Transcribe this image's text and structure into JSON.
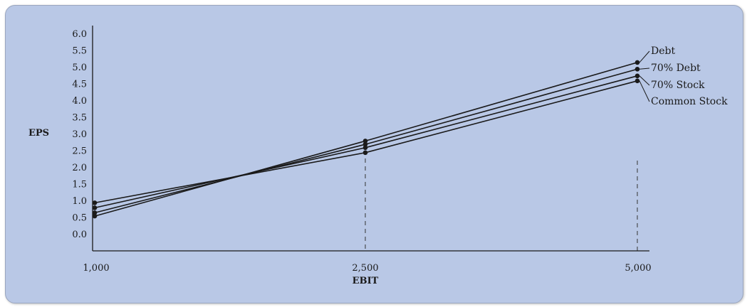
{
  "chart_data": {
    "type": "line",
    "xlabel": "EBIT",
    "ylabel": "EPS",
    "x": [
      "1,000",
      "2,500",
      "5,000"
    ],
    "y_ticks": [
      "0.0",
      "0.5",
      "1.0",
      "1.5",
      "2.0",
      "2.5",
      "3.0",
      "3.5",
      "4.0",
      "4.5",
      "5.0",
      "5.5",
      "6.0"
    ],
    "ylim": [
      -0.5,
      6.0
    ],
    "series": [
      {
        "name": "Debt",
        "values": [
          0.55,
          2.8,
          5.15
        ]
      },
      {
        "name": "70% Debt",
        "values": [
          0.65,
          2.7,
          4.95
        ]
      },
      {
        "name": "70% Stock",
        "values": [
          0.8,
          2.6,
          4.75
        ]
      },
      {
        "name": "Common Stock",
        "values": [
          0.95,
          2.45,
          4.6
        ]
      }
    ],
    "dashed_reference_x": [
      "2,500",
      "5,000"
    ],
    "colors": {
      "background": "#b9c8e6",
      "line": "#1a1a1a"
    }
  }
}
